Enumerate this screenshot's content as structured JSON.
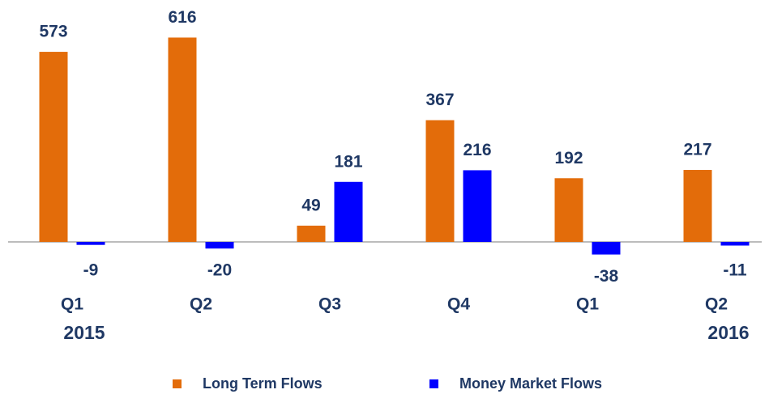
{
  "chart_data": {
    "type": "bar",
    "categories": [
      "Q1",
      "Q2",
      "Q3",
      "Q4",
      "Q1",
      "Q2"
    ],
    "group_labels": [
      "2015",
      null,
      null,
      null,
      null,
      "2016"
    ],
    "series": [
      {
        "name": "Long Term Flows",
        "color": "#e36c0a",
        "values": [
          573,
          616,
          49,
          367,
          192,
          217
        ]
      },
      {
        "name": "Money Market Flows",
        "color": "#0000ff",
        "values": [
          -9,
          -20,
          181,
          216,
          -38,
          -11
        ]
      }
    ],
    "ylim": [
      -100,
      700
    ],
    "legend": "bottom"
  }
}
